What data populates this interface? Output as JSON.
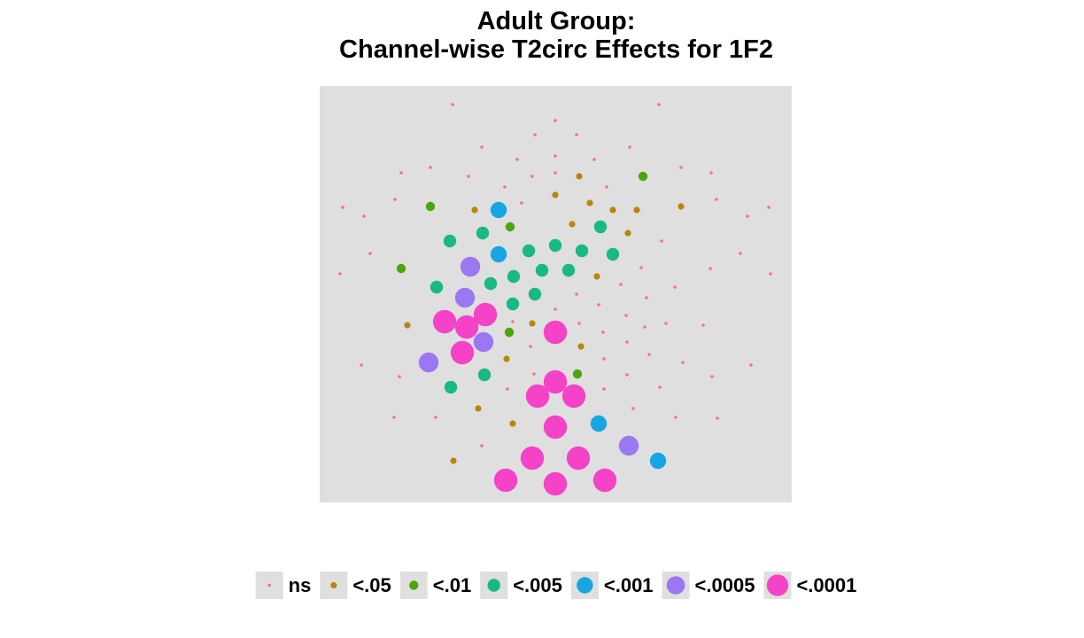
{
  "chart_data": {
    "type": "scatter",
    "title": "Adult Group:",
    "subtitle": "Channel-wise T2circ Effects for 1F2",
    "xlabel": "",
    "ylabel": "",
    "axes_visible": false,
    "grid": false,
    "panel_color": "#DFDFDF",
    "legend": {
      "position": "bottom",
      "entries": [
        {
          "key": "ns",
          "label": "ns",
          "color": "#F8766D",
          "size": 1
        },
        {
          "key": "p05",
          "label": "<.05",
          "color": "#B8860B",
          "size": 2
        },
        {
          "key": "p01",
          "label": "<.01",
          "color": "#4DA50A",
          "size": 3
        },
        {
          "key": "p005",
          "label": "<.005",
          "color": "#19B983",
          "size": 4
        },
        {
          "key": "p001",
          "label": "<.001",
          "color": "#16A7E2",
          "size": 5
        },
        {
          "key": "p0005",
          "label": "<.0005",
          "color": "#9C77F2",
          "size": 6
        },
        {
          "key": "p0001",
          "label": "<.0001",
          "color": "#F543C7",
          "size": 7
        }
      ]
    },
    "xlim": [
      361,
      894
    ],
    "ylim": [
      97,
      567
    ],
    "series": [
      {
        "name": "ns",
        "points": [
          [
            511,
            118
          ],
          [
            744,
            118
          ],
          [
            627,
            136
          ],
          [
            604,
            152
          ],
          [
            651,
            152
          ],
          [
            544,
            166
          ],
          [
            711,
            166
          ],
          [
            584,
            180
          ],
          [
            627,
            176
          ],
          [
            671,
            180
          ],
          [
            486,
            189
          ],
          [
            769,
            189
          ],
          [
            453,
            195
          ],
          [
            529,
            199
          ],
          [
            601,
            199
          ],
          [
            627,
            195
          ],
          [
            803,
            195
          ],
          [
            570,
            211
          ],
          [
            685,
            211
          ],
          [
            446,
            225
          ],
          [
            589,
            229
          ],
          [
            809,
            225
          ],
          [
            387,
            234
          ],
          [
            868,
            234
          ],
          [
            411,
            244
          ],
          [
            844,
            244
          ],
          [
            747,
            272
          ],
          [
            418,
            286
          ],
          [
            836,
            286
          ],
          [
            724,
            302
          ],
          [
            384,
            309
          ],
          [
            802,
            303
          ],
          [
            870,
            309
          ],
          [
            701,
            321
          ],
          [
            762,
            324
          ],
          [
            651,
            332
          ],
          [
            730,
            336
          ],
          [
            676,
            344
          ],
          [
            627,
            349
          ],
          [
            707,
            356
          ],
          [
            579,
            363
          ],
          [
            654,
            365
          ],
          [
            752,
            365
          ],
          [
            728,
            369
          ],
          [
            794,
            367
          ],
          [
            681,
            375
          ],
          [
            599,
            391
          ],
          [
            708,
            386
          ],
          [
            733,
            400
          ],
          [
            682,
            405
          ],
          [
            408,
            412
          ],
          [
            771,
            409
          ],
          [
            848,
            412
          ],
          [
            451,
            425
          ],
          [
            603,
            422
          ],
          [
            708,
            423
          ],
          [
            804,
            425
          ],
          [
            573,
            439
          ],
          [
            682,
            439
          ],
          [
            745,
            437
          ],
          [
            715,
            461
          ],
          [
            445,
            471
          ],
          [
            492,
            471
          ],
          [
            763,
            471
          ],
          [
            810,
            472
          ],
          [
            544,
            503
          ]
        ]
      },
      {
        "name": "<.05",
        "points": [
          [
            654,
            199
          ],
          [
            536,
            237
          ],
          [
            627,
            220
          ],
          [
            666,
            229
          ],
          [
            692,
            237
          ],
          [
            719,
            237
          ],
          [
            769,
            233
          ],
          [
            646,
            253
          ],
          [
            709,
            263
          ],
          [
            674,
            312
          ],
          [
            601,
            365
          ],
          [
            460,
            367
          ],
          [
            656,
            391
          ],
          [
            572,
            405
          ],
          [
            540,
            461
          ],
          [
            579,
            478
          ],
          [
            512,
            520
          ]
        ]
      },
      {
        "name": "<.01",
        "points": [
          [
            726,
            199
          ],
          [
            486,
            233
          ],
          [
            576,
            256
          ],
          [
            453,
            303
          ],
          [
            575,
            375
          ],
          [
            652,
            422
          ]
        ]
      },
      {
        "name": "<.005",
        "points": [
          [
            678,
            256
          ],
          [
            508,
            272
          ],
          [
            545,
            263
          ],
          [
            597,
            283
          ],
          [
            627,
            277
          ],
          [
            657,
            283
          ],
          [
            692,
            287
          ],
          [
            612,
            305
          ],
          [
            642,
            305
          ],
          [
            493,
            324
          ],
          [
            554,
            320
          ],
          [
            580,
            312
          ],
          [
            604,
            332
          ],
          [
            579,
            343
          ],
          [
            547,
            423
          ],
          [
            509,
            437
          ]
        ]
      },
      {
        "name": "<.001",
        "points": [
          [
            563,
            237
          ],
          [
            563,
            287
          ],
          [
            676,
            478
          ],
          [
            743,
            520
          ]
        ]
      },
      {
        "name": "<.0005",
        "points": [
          [
            531,
            301
          ],
          [
            525,
            336
          ],
          [
            546,
            386
          ],
          [
            484,
            409
          ],
          [
            710,
            503
          ]
        ]
      },
      {
        "name": "<.0001",
        "points": [
          [
            548,
            355
          ],
          [
            502,
            363
          ],
          [
            527,
            369
          ],
          [
            627,
            375
          ],
          [
            522,
            398
          ],
          [
            627,
            431
          ],
          [
            607,
            447
          ],
          [
            648,
            447
          ],
          [
            627,
            482
          ],
          [
            601,
            517
          ],
          [
            653,
            517
          ],
          [
            571,
            542
          ],
          [
            627,
            546
          ],
          [
            683,
            542
          ]
        ]
      }
    ]
  }
}
